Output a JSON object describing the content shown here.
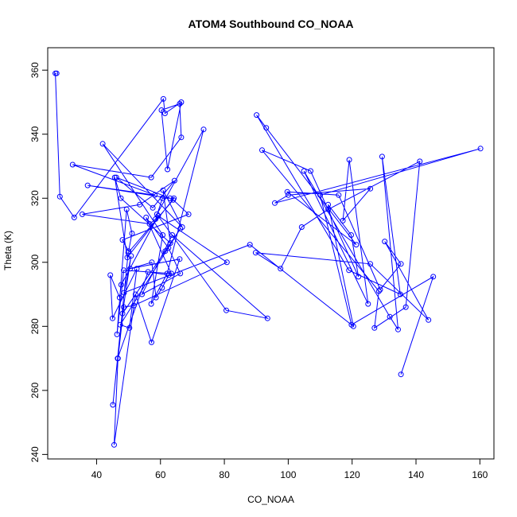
{
  "chart_data": {
    "type": "line",
    "title": "ATOM4 Southbound CO_NOAA",
    "xlabel": "CO_NOAA",
    "ylabel": "Theta (K)",
    "xlim": [
      24.7,
      164.4
    ],
    "ylim": [
      238.6,
      367.0
    ],
    "xticks": [
      40,
      60,
      80,
      100,
      120,
      140,
      160
    ],
    "yticks": [
      240,
      260,
      280,
      300,
      320,
      340,
      360
    ],
    "grid": false,
    "legend": "none",
    "colors": {
      "series": "#0000ff",
      "axes": "#000000",
      "background": "#ffffff"
    },
    "series": [
      {
        "x": [
          27.5,
          27.1,
          28.5,
          33.0,
          60.9,
          61.4,
          66.5,
          62.2,
          60.3,
          66.0,
          66.5,
          57.1,
          32.5,
          58.2,
          37.2,
          63.0,
          46.2,
          57.6,
          64.4,
          53.5,
          35.5,
          56.6,
          58.5,
          60.6,
          64.2,
          49.6,
          45.7,
          47.6,
          63.1,
          60.8,
          66.8,
          41.9,
          60.7,
          57.1,
          62.1,
          73.5,
          58.9,
          80.6,
          93.5,
          63.7,
          54.2,
          66.2,
          62.5,
          55.5,
          63.4,
          48.5,
          46.4,
          49.4,
          51.1,
          50.0,
          48.1,
          68.8,
          64.0,
          49.9,
          45.1,
          46.6,
          56.1,
          62.6,
          60.5,
          58.6,
          57.3,
          50.5,
          66.0,
          57.2,
          52.2,
          45.5,
          46.7,
          48.5,
          51.7,
          80.8,
          59.3,
          47.7,
          47.2,
          44.3,
          45.0,
          52.6,
          50.3,
          47.4,
          66.2,
          61.5,
          48.1,
          50.8,
          48.6,
          88.0,
          120.4,
          112.5,
          119.7,
          122.0,
          107.0,
          91.8,
          128.4,
          127.0,
          136.8,
          141.2,
          112.5,
          104.2,
          97.6,
          89.8,
          125.7,
          143.9,
          130.2,
          135.3,
          128.8,
          115.8,
          99.7,
          121.3,
          93.1,
          90.1,
          119.0,
          135.1,
          129.4,
          134.4,
          131.8,
          104.9,
          125.0,
          119.1,
          117.1,
          125.7,
          100.0,
          95.8,
          160.2,
          110.0,
          119.8,
          145.4,
          135.3
        ]
      }
    ],
    "sample_y": [
      359.0,
      359.0,
      320.5,
      314.0,
      351.0,
      346.5,
      350.0,
      329.0,
      347.5,
      349.5,
      339.0,
      326.5,
      330.5,
      321.0,
      324.0,
      320.0,
      326.5,
      317.0,
      325.5,
      318.0,
      315.0,
      312.0,
      313.5,
      320.0,
      320.0,
      301.5,
      326.5,
      320.0,
      306.0,
      322.5,
      311.0,
      337.0,
      308.5,
      287.0,
      296.5,
      341.5,
      315.0,
      285.0,
      282.5,
      308.5,
      290.0,
      296.5,
      304.5,
      314.0,
      296.5,
      297.5,
      277.5,
      316.5,
      309.0,
      303.5,
      307.0,
      315.0,
      319.5,
      303.0,
      255.5,
      270.0,
      297.0,
      296.0,
      292.0,
      289.0,
      300.0,
      298.0,
      301.0,
      275.0,
      290.0,
      243.0,
      270.0,
      286.0,
      286.5,
      300.0,
      314.5,
      293.0,
      289.0,
      296.0,
      282.5,
      298.0,
      279.5,
      280.5,
      310.5,
      303.5,
      284.0,
      302.0,
      290.5,
      305.5,
      280.0,
      318.0,
      308.5,
      295.5,
      328.5,
      335.0,
      291.0,
      279.5,
      286.0,
      331.5,
      316.5,
      311.0,
      298.0,
      303.0,
      299.5,
      282.0,
      306.5,
      299.5,
      291.5,
      321.0,
      322.0,
      305.5,
      342.0,
      346.0,
      297.5,
      290.0,
      333.0,
      279.0,
      283.0,
      328.5,
      287.0,
      332.0,
      313.0,
      323.0,
      321.0,
      318.5,
      335.5,
      321.0,
      280.5,
      295.5,
      265.0
    ]
  }
}
